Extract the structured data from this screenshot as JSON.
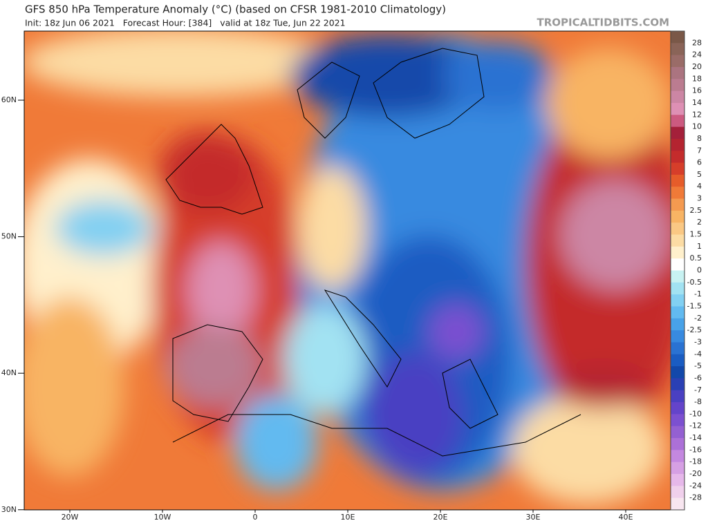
{
  "header": {
    "title": "GFS 850 hPa Temperature Anomaly (°C) (based on CFSR 1981-2010 Climatology)",
    "subtitle": "Init: 18z Jun 06 2021   Forecast Hour: [384]   valid at 18z Tue, Jun 22 2021",
    "site": "TROPICALTIDBITS.COM"
  },
  "map": {
    "lat_labels": [
      "60N",
      "50N",
      "40N",
      "30N"
    ],
    "lon_labels": [
      "20W",
      "10W",
      "0",
      "10E",
      "20E",
      "30E",
      "40E"
    ]
  },
  "colorbar": {
    "labels": [
      28,
      24,
      20,
      18,
      16,
      14,
      12,
      10,
      8,
      7,
      6,
      5,
      4,
      3,
      2.5,
      2,
      1.5,
      1,
      0.5,
      0,
      -0.5,
      -1,
      -1.5,
      -2,
      -2.5,
      -3,
      -4,
      -5,
      -6,
      -7,
      -8,
      -10,
      -12,
      -14,
      -16,
      -18,
      -20,
      -24,
      -28
    ],
    "colors": [
      "#7a5848",
      "#8a6458",
      "#9a6c68",
      "#ab7480",
      "#bb7c90",
      "#cc86a4",
      "#de90b4",
      "#cc5a80",
      "#a4203a",
      "#b42430",
      "#c42c2c",
      "#d63e2a",
      "#e65c2a",
      "#f07a38",
      "#f49a50",
      "#f8b464",
      "#fac884",
      "#fcdca4",
      "#fff0cc",
      "#ffffff",
      "#c8f2f2",
      "#a2e2f2",
      "#82d0f2",
      "#62baf0",
      "#48a2e8",
      "#388ae0",
      "#2a72d2",
      "#1a5cc2",
      "#1248aa",
      "#2a40b4",
      "#4a40c2",
      "#6444ca",
      "#7c50d0",
      "#9460d2",
      "#ac70d8",
      "#c488e0",
      "#d6a0e4",
      "#e6b8ea",
      "#f0d0ec",
      "#f8e6f0"
    ]
  }
}
